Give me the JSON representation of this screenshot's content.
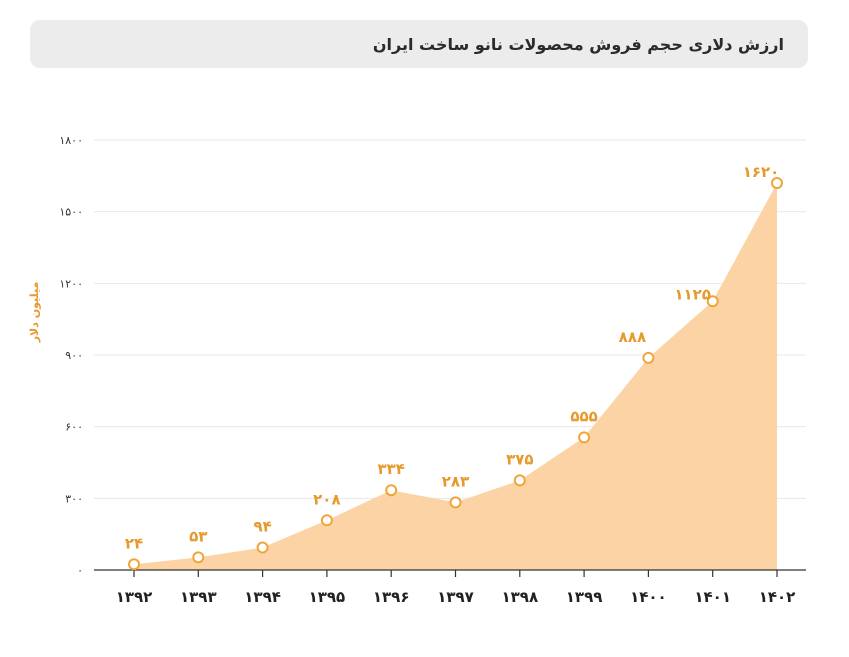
{
  "header": {
    "title": "ارزش دلاری حجم فروش محصولات نانو ساخت ایران"
  },
  "chart_data": {
    "type": "area",
    "title": "ارزش دلاری حجم فروش محصولات نانو ساخت ایران",
    "ylabel": "میلیون دلار",
    "xlabel": "",
    "ylim": [
      0,
      1800
    ],
    "yticks": [
      0,
      300,
      600,
      900,
      1200,
      1500,
      1800
    ],
    "ytick_labels": [
      "۰",
      "۳۰۰",
      "۶۰۰",
      "۹۰۰",
      "۱۲۰۰",
      "۱۵۰۰",
      "۱۸۰۰"
    ],
    "categories": [
      "۱۳۹۲",
      "۱۳۹۳",
      "۱۳۹۴",
      "۱۳۹۵",
      "۱۳۹۶",
      "۱۳۹۷",
      "۱۳۹۸",
      "۱۳۹۹",
      "۱۴۰۰",
      "۱۴۰۱",
      "۱۴۰۲"
    ],
    "values": [
      24,
      53,
      94,
      208,
      334,
      283,
      375,
      555,
      888,
      1125,
      1620
    ],
    "value_labels": [
      "۲۴",
      "۵۳",
      "۹۴",
      "۲۰۸",
      "۳۳۴",
      "۲۸۳",
      "۳۷۵",
      "۵۵۵",
      "۸۸۸",
      "۱۱۲۵",
      "۱۶۲۰"
    ],
    "grid": true,
    "fill_color": "#fcd3a4",
    "marker_color": "#f0a53a",
    "label_color": "#e69a2e"
  }
}
